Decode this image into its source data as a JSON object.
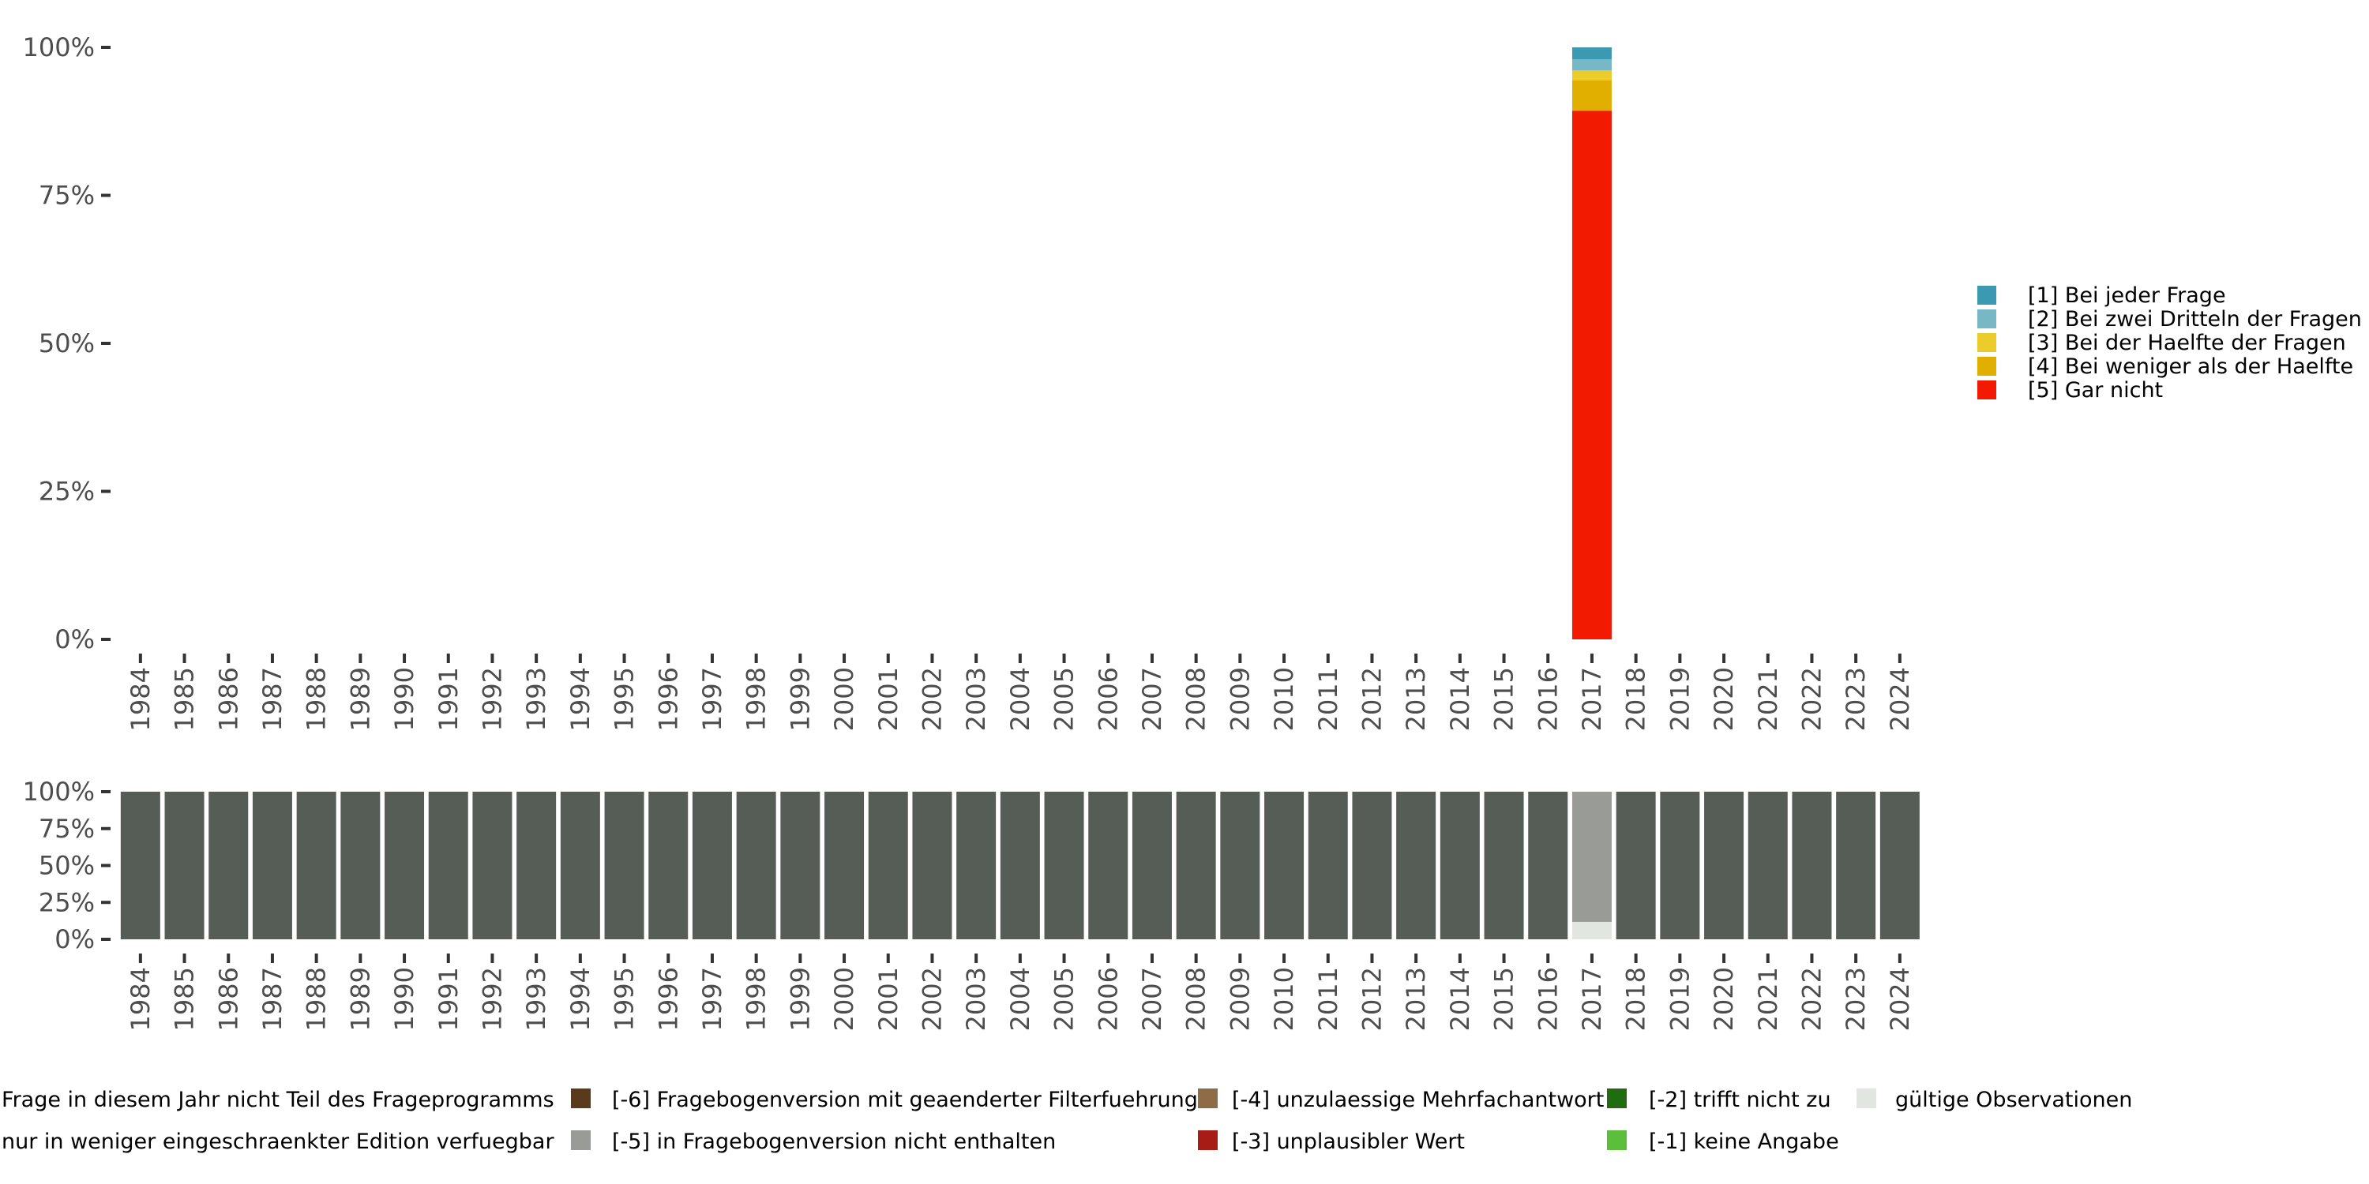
{
  "chart_data": [
    {
      "type": "bar",
      "stacked": true,
      "title": "",
      "xlabel": "",
      "ylabel": "",
      "ylim": [
        0,
        100
      ],
      "yticks": [
        "0%",
        "25%",
        "50%",
        "75%",
        "100%"
      ],
      "categories": [
        "1984",
        "1985",
        "1986",
        "1987",
        "1988",
        "1989",
        "1990",
        "1991",
        "1992",
        "1993",
        "1994",
        "1995",
        "1996",
        "1997",
        "1998",
        "1999",
        "2000",
        "2001",
        "2002",
        "2003",
        "2004",
        "2005",
        "2006",
        "2007",
        "2008",
        "2009",
        "2010",
        "2011",
        "2012",
        "2013",
        "2014",
        "2015",
        "2016",
        "2017",
        "2018",
        "2019",
        "2020",
        "2021",
        "2022",
        "2023",
        "2024"
      ],
      "legend_position": "right",
      "series": [
        {
          "name": "[5] Gar nicht",
          "color": "#f21a00",
          "values": {
            "2017": 89.3
          }
        },
        {
          "name": "[4] Bei weniger als der Haelfte",
          "color": "#e1af00",
          "values": {
            "2017": 5.1
          }
        },
        {
          "name": "[3] Bei der Haelfte der Fragen",
          "color": "#ebcc2a",
          "values": {
            "2017": 1.7
          }
        },
        {
          "name": "[2] Bei zwei Dritteln der Fragen",
          "color": "#78b7c5",
          "values": {
            "2017": 1.9
          }
        },
        {
          "name": "[1] Bei jeder Frage",
          "color": "#3b9ab2",
          "values": {
            "2017": 2.0
          }
        }
      ],
      "legend_order": [
        "[1] Bei jeder Frage",
        "[2] Bei zwei Dritteln der Fragen",
        "[3] Bei der Haelfte der Fragen",
        "[4] Bei weniger als der Haelfte",
        "[5] Gar nicht"
      ]
    },
    {
      "type": "bar",
      "stacked": true,
      "title": "",
      "xlabel": "",
      "ylabel": "",
      "ylim": [
        0,
        100
      ],
      "yticks": [
        "0%",
        "25%",
        "50%",
        "75%",
        "100%"
      ],
      "categories": [
        "1984",
        "1985",
        "1986",
        "1987",
        "1988",
        "1989",
        "1990",
        "1991",
        "1992",
        "1993",
        "1994",
        "1995",
        "1996",
        "1997",
        "1998",
        "1999",
        "2000",
        "2001",
        "2002",
        "2003",
        "2004",
        "2005",
        "2006",
        "2007",
        "2008",
        "2009",
        "2010",
        "2011",
        "2012",
        "2013",
        "2014",
        "2015",
        "2016",
        "2017",
        "2018",
        "2019",
        "2020",
        "2021",
        "2022",
        "2023",
        "2024"
      ],
      "legend_position": "bottom",
      "default_series": "Frage in diesem Jahr nicht Teil des Frageprogramms",
      "special": {
        "2017": [
          {
            "name": "gültige Observationen",
            "value": 11.8
          },
          {
            "name": "[-5] in Fragebogenversion nicht enthalten",
            "value": 88.2
          }
        ]
      },
      "legend": [
        {
          "name": "Frage in diesem Jahr nicht Teil des Frageprogramms",
          "color": "#565c56"
        },
        {
          "name": "nur in weniger eingeschraenkter Edition verfuegbar",
          "color": "#7a7f78"
        },
        {
          "name": "[-6] Fragebogenversion mit geaenderter Filterfuehrung",
          "color": "#5a3a1a"
        },
        {
          "name": "[-5] in Fragebogenversion nicht enthalten",
          "color": "#999c96"
        },
        {
          "name": "[-4] unzulaessige Mehrfachantwort",
          "color": "#8f6c48"
        },
        {
          "name": "[-3] unplausibler Wert",
          "color": "#a81c16"
        },
        {
          "name": "[-2] trifft nicht zu",
          "color": "#216b10"
        },
        {
          "name": "[-1] keine Angabe",
          "color": "#5bbf3c"
        },
        {
          "name": "gültige Observationen",
          "color": "#e1e6e1"
        }
      ]
    }
  ]
}
